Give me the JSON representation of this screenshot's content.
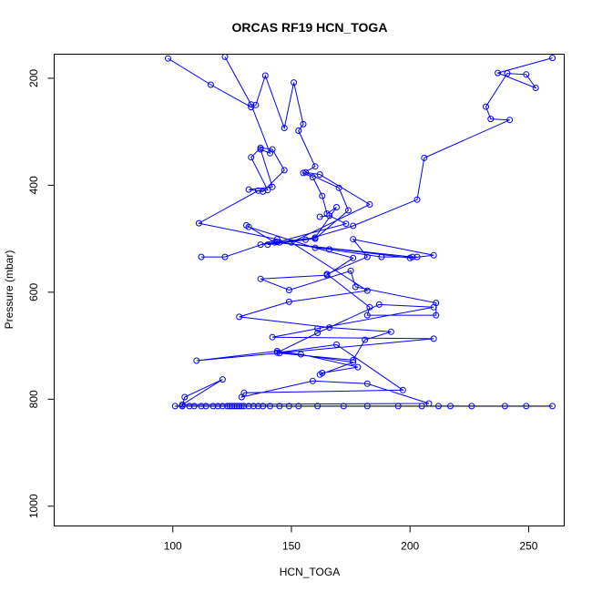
{
  "chart_data": {
    "type": "line",
    "title": "ORCAS RF19 HCN_TOGA",
    "xlabel": "HCN_TOGA",
    "ylabel": "Pressure (mbar)",
    "xlim": [
      50,
      265
    ],
    "ylim": [
      1037,
      155
    ],
    "y_inverted": true,
    "xticks": [
      100,
      150,
      200,
      250
    ],
    "yticks": [
      200,
      400,
      600,
      800,
      1000
    ],
    "grid": false,
    "colors": {
      "series": "#0000ff",
      "ground_line": "#000000"
    },
    "series": [
      {
        "points": [
          [
            98,
            163
          ],
          [
            116,
            212
          ],
          [
            133,
            254
          ],
          [
            135,
            250
          ],
          [
            139,
            195
          ],
          [
            147,
            293
          ],
          [
            151,
            208
          ],
          [
            155,
            286
          ],
          [
            153,
            298
          ],
          [
            160,
            365
          ],
          [
            155,
            377
          ],
          [
            159,
            385
          ],
          [
            163,
            420
          ],
          [
            165,
            453
          ],
          [
            169,
            441
          ],
          [
            160,
            498
          ],
          [
            137,
            511
          ],
          [
            144,
            506
          ],
          [
            166,
            520
          ],
          [
            188,
            534
          ],
          [
            203,
            534
          ],
          [
            201,
            534
          ],
          [
            143,
            507
          ],
          [
            131,
            475
          ],
          [
            132,
            478
          ],
          [
            160,
            517
          ],
          [
            176,
            536
          ],
          [
            165,
            568
          ],
          [
            137,
            575
          ],
          [
            149,
            596
          ],
          [
            175,
            560
          ],
          [
            177,
            590
          ],
          [
            211,
            620
          ],
          [
            211,
            643
          ],
          [
            182,
            643
          ],
          [
            183,
            628
          ],
          [
            165,
            566
          ],
          [
            182,
            534
          ],
          [
            176,
            501
          ],
          [
            210,
            531
          ],
          [
            200,
            536
          ],
          [
            145,
            507
          ],
          [
            160,
            500
          ],
          [
            174,
            447
          ],
          [
            170,
            405
          ],
          [
            156,
            376
          ],
          [
            162,
            380
          ],
          [
            183,
            436
          ],
          [
            150,
            507
          ],
          [
            182,
            597
          ],
          [
            149,
            618
          ],
          [
            128,
            646
          ],
          [
            166,
            666
          ],
          [
            192,
            674
          ],
          [
            181,
            689
          ],
          [
            176,
            727
          ],
          [
            145,
            714
          ],
          [
            154,
            716
          ],
          [
            178,
            740
          ],
          [
            163,
            751
          ],
          [
            162,
            754
          ],
          [
            176,
            731
          ],
          [
            144,
            710
          ],
          [
            110,
            728
          ],
          [
            210,
            687
          ],
          [
            142,
            684
          ],
          [
            161,
            668
          ],
          [
            210,
            628
          ],
          [
            187,
            623
          ],
          [
            161,
            676
          ],
          [
            144,
            713
          ],
          [
            169,
            698
          ],
          [
            197,
            783
          ],
          [
            130,
            788
          ],
          [
            129,
            796
          ],
          [
            159,
            766
          ],
          [
            182,
            771
          ],
          [
            208,
            808
          ],
          [
            104,
            810
          ],
          [
            121,
            763
          ],
          [
            105,
            796
          ],
          [
            104,
            813
          ]
        ]
      },
      {
        "points": [
          [
            122,
            160
          ],
          [
            133,
            249
          ],
          [
            141,
            340
          ],
          [
            137,
            333
          ],
          [
            142,
            403
          ],
          [
            132,
            408
          ],
          [
            138,
            412
          ],
          [
            147,
            372
          ],
          [
            142,
            333
          ],
          [
            137,
            330
          ],
          [
            133,
            348
          ],
          [
            140,
            409
          ],
          [
            136,
            410
          ],
          [
            111,
            471
          ],
          [
            144,
            501
          ],
          [
            122,
            534
          ],
          [
            112,
            534
          ]
        ]
      },
      {
        "points": [
          [
            260,
            162
          ],
          [
            237,
            190
          ],
          [
            253,
            218
          ],
          [
            249,
            193
          ],
          [
            241,
            191
          ],
          [
            232,
            253
          ],
          [
            234,
            276
          ],
          [
            242,
            278
          ],
          [
            206,
            349
          ],
          [
            203,
            427
          ],
          [
            176,
            476
          ],
          [
            156,
            502
          ],
          [
            140,
            511
          ],
          [
            173,
            472
          ],
          [
            166,
            457
          ],
          [
            162,
            459
          ]
        ]
      },
      {
        "points": [
          [
            101,
            813
          ],
          [
            104,
            813
          ],
          [
            107,
            813
          ],
          [
            109,
            813
          ],
          [
            112,
            813
          ],
          [
            114,
            813
          ],
          [
            117,
            813
          ],
          [
            119,
            813
          ],
          [
            121,
            813
          ],
          [
            123,
            813
          ],
          [
            124,
            813
          ],
          [
            125,
            813
          ],
          [
            126,
            813
          ],
          [
            127,
            813
          ],
          [
            128,
            813
          ],
          [
            129,
            813
          ],
          [
            130,
            813
          ],
          [
            132,
            813
          ],
          [
            134,
            813
          ],
          [
            136,
            813
          ],
          [
            138,
            813
          ],
          [
            141,
            813
          ],
          [
            145,
            813
          ],
          [
            149,
            813
          ],
          [
            153,
            813
          ],
          [
            161,
            813
          ],
          [
            172,
            813
          ],
          [
            182,
            813
          ],
          [
            195,
            813
          ],
          [
            205,
            813
          ],
          [
            212,
            813
          ],
          [
            217,
            813
          ],
          [
            226,
            813
          ],
          [
            240,
            813
          ],
          [
            249,
            813
          ],
          [
            260,
            813
          ]
        ]
      }
    ]
  }
}
